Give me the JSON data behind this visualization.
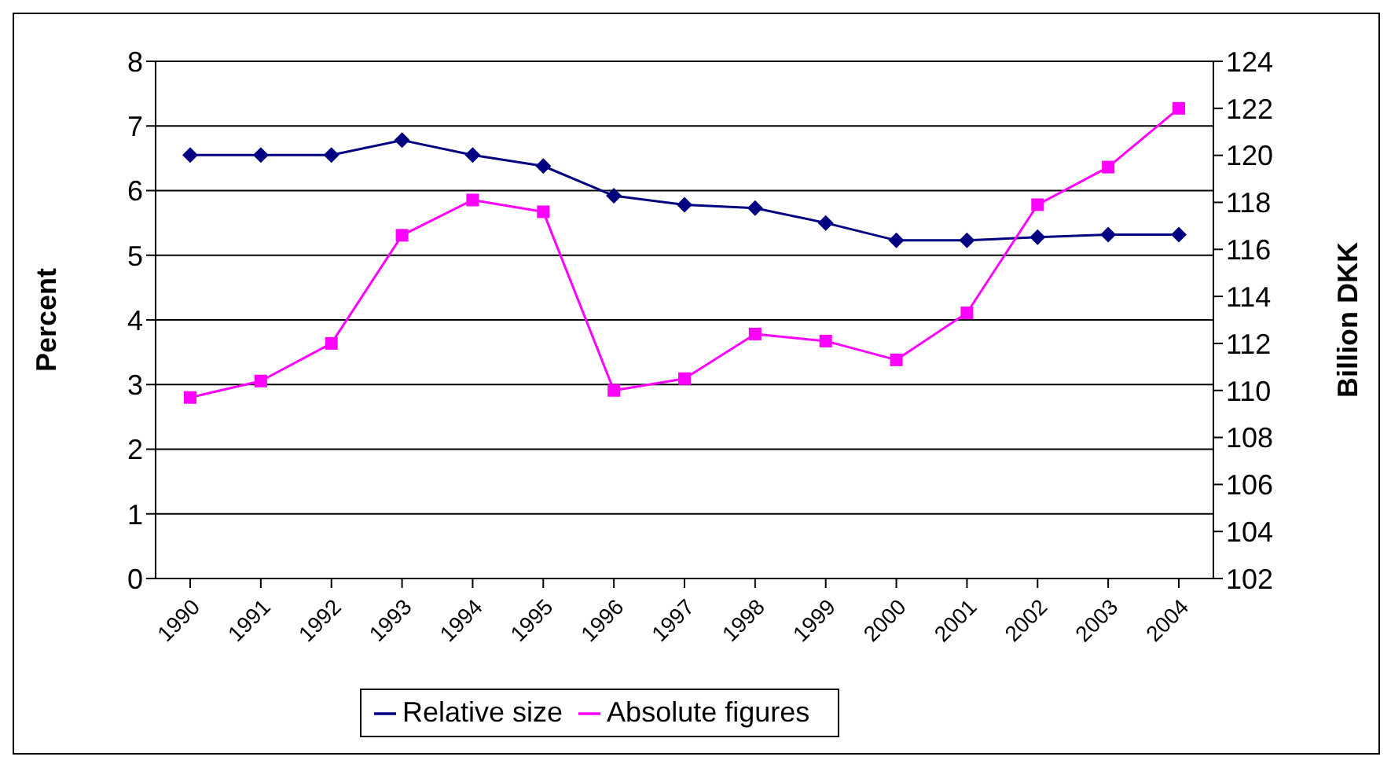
{
  "chart_data": {
    "type": "line",
    "categories": [
      "1990",
      "1991",
      "1992",
      "1993",
      "1994",
      "1995",
      "1996",
      "1997",
      "1998",
      "1999",
      "2000",
      "2001",
      "2002",
      "2003",
      "2004"
    ],
    "ylabel": "Percent",
    "y2label": "Billion DKK",
    "ylim": [
      0,
      8
    ],
    "yticks": [
      0,
      1,
      2,
      3,
      4,
      5,
      6,
      7,
      8
    ],
    "y2lim": [
      102,
      124
    ],
    "y2ticks": [
      102,
      104,
      106,
      108,
      110,
      112,
      114,
      116,
      118,
      120,
      122,
      124
    ],
    "grid": "y",
    "legend": "bottom",
    "series": [
      {
        "name": "Relative size",
        "color": "#000080",
        "marker": "diamond",
        "values": [
          6.55,
          6.55,
          6.55,
          6.78,
          6.55,
          6.38,
          5.92,
          5.78,
          5.73,
          5.5,
          5.23,
          5.23,
          5.28,
          5.32,
          5.32
        ]
      },
      {
        "name": "Absolute figures",
        "color": "#ff00ff",
        "marker": "square",
        "axis": "y2",
        "values": [
          109.7,
          110.4,
          112.0,
          116.6,
          118.1,
          117.6,
          110.0,
          110.5,
          112.4,
          112.1,
          111.3,
          113.3,
          117.9,
          119.5,
          122.0
        ]
      }
    ]
  }
}
